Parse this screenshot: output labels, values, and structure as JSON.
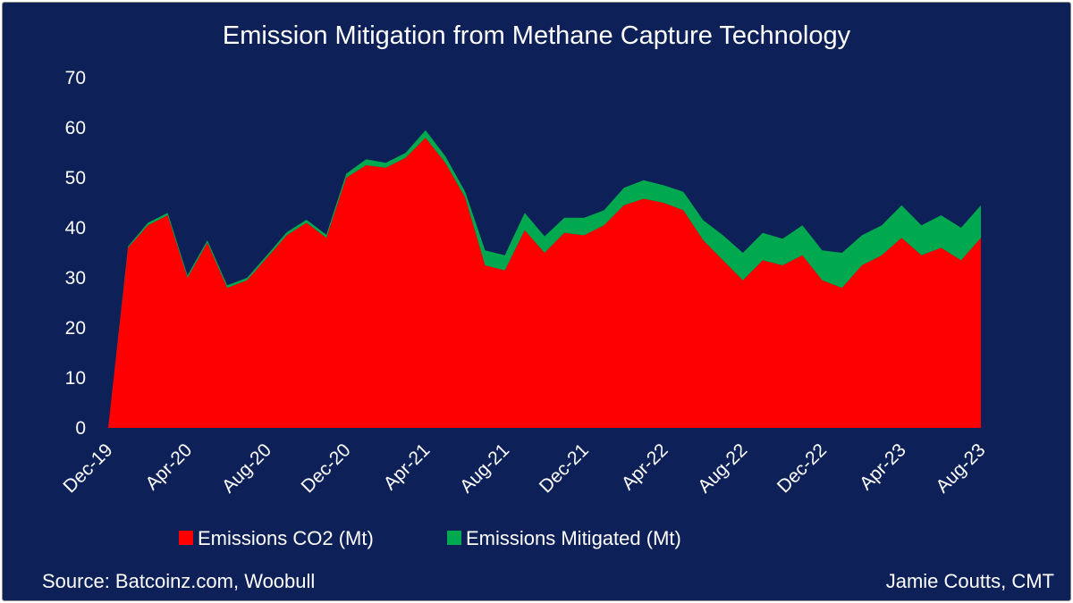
{
  "chart_data": {
    "type": "area",
    "stacked": true,
    "title": "Emission Mitigation from Methane Capture Technology",
    "xlabel": "",
    "ylabel": "",
    "ylim": [
      0,
      70
    ],
    "yticks": [
      0,
      10,
      20,
      30,
      40,
      50,
      60,
      70
    ],
    "grid": false,
    "legend": "bottom",
    "x": [
      "Dec-19",
      "Jan-20",
      "Feb-20",
      "Mar-20",
      "Apr-20",
      "May-20",
      "Jun-20",
      "Jul-20",
      "Aug-20",
      "Sep-20",
      "Oct-20",
      "Nov-20",
      "Dec-20",
      "Jan-21",
      "Feb-21",
      "Mar-21",
      "Apr-21",
      "May-21",
      "Jun-21",
      "Jul-21",
      "Aug-21",
      "Sep-21",
      "Oct-21",
      "Nov-21",
      "Dec-21",
      "Jan-22",
      "Feb-22",
      "Mar-22",
      "Apr-22",
      "May-22",
      "Jun-22",
      "Jul-22",
      "Aug-22",
      "Sep-22",
      "Oct-22",
      "Nov-22",
      "Dec-22",
      "Jan-23",
      "Feb-23",
      "Mar-23",
      "Apr-23",
      "May-23",
      "Jun-23",
      "Jul-23",
      "Aug-23"
    ],
    "x_tick_labels": [
      "Dec-19",
      "Apr-20",
      "Aug-20",
      "Dec-20",
      "Apr-21",
      "Aug-21",
      "Dec-21",
      "Apr-22",
      "Aug-22",
      "Dec-22",
      "Apr-23",
      "Aug-23"
    ],
    "series": [
      {
        "name": "Emissions CO2 (Mt)",
        "color": "#ff0000",
        "values": [
          0,
          36,
          40.5,
          42.5,
          30,
          37,
          28,
          29.5,
          34,
          38.5,
          41,
          38,
          50,
          52.5,
          52,
          54,
          58,
          53,
          46,
          32.5,
          31.5,
          39.5,
          35,
          39,
          38.5,
          40.5,
          44.5,
          45.8,
          45,
          43.5,
          37.5,
          33.5,
          29.5,
          33.5,
          32.5,
          34.5,
          29.5,
          28,
          32.5,
          34.5,
          38,
          34.5,
          36,
          33.5,
          38
        ]
      },
      {
        "name": "Emissions Mitigated (Mt)",
        "color": "#00a84f",
        "values": [
          0,
          0.3,
          0.5,
          0.5,
          0.5,
          0.5,
          0.5,
          0.5,
          0.5,
          0.6,
          0.6,
          0.6,
          0.8,
          1.2,
          1,
          1,
          1.5,
          1.3,
          1.2,
          3,
          3,
          3.5,
          3.3,
          3,
          3.5,
          3,
          3.5,
          3.7,
          3.5,
          3.7,
          4,
          5,
          5.5,
          5.5,
          5.3,
          6,
          6,
          7,
          6,
          6,
          6.5,
          6,
          6.5,
          6.5,
          6.5
        ]
      }
    ]
  },
  "footer": {
    "source": "Source: Batcoinz.com, Woobull",
    "author": "Jamie Coutts, CMT"
  }
}
